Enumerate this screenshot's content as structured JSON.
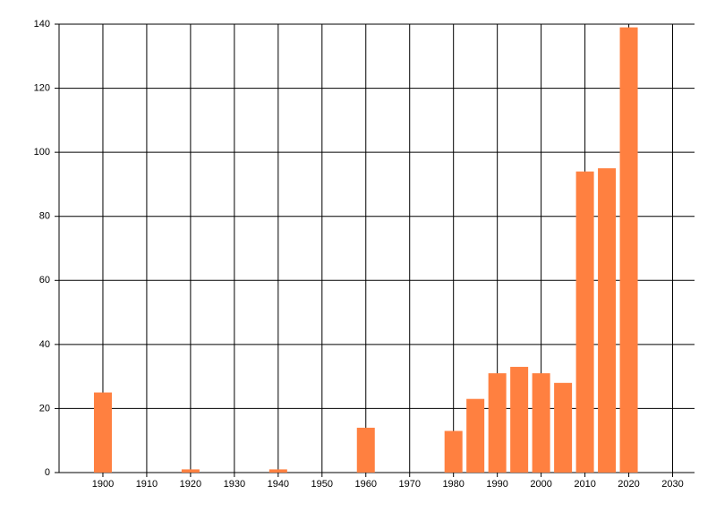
{
  "chart_data": {
    "type": "bar",
    "x": [
      1900,
      1920,
      1940,
      1960,
      1980,
      1985,
      1990,
      1995,
      2000,
      2005,
      2010,
      2015,
      2020
    ],
    "values": [
      25,
      1,
      1,
      14,
      13,
      23,
      31,
      33,
      31,
      28,
      94,
      95,
      139
    ],
    "color": "#ff8040",
    "xlim": [
      1890,
      2035
    ],
    "xticks": [
      1900,
      1910,
      1920,
      1930,
      1940,
      1950,
      1960,
      1970,
      1980,
      1990,
      2000,
      2010,
      2020,
      2030
    ],
    "ylim": [
      0,
      140
    ],
    "yticks": [
      0,
      20,
      40,
      60,
      80,
      100,
      120,
      140
    ],
    "grid": true
  }
}
